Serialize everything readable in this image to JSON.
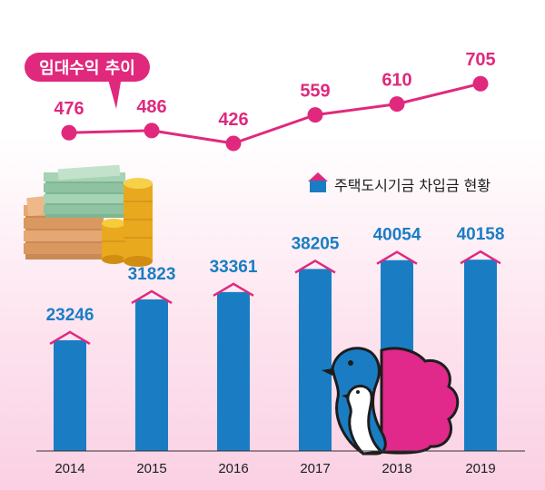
{
  "chart_data": [
    {
      "type": "line",
      "title": "임대수익 추이",
      "categories": [
        "2014",
        "2015",
        "2016",
        "2017",
        "2018",
        "2019"
      ],
      "values": [
        476,
        486,
        426,
        559,
        610,
        705
      ],
      "color": "#e0297d"
    },
    {
      "type": "bar",
      "title": "주택도시기금 차입금 현황",
      "categories": [
        "2014",
        "2015",
        "2016",
        "2017",
        "2018",
        "2019"
      ],
      "values": [
        23246,
        31823,
        33361,
        38205,
        40054,
        40158
      ],
      "color": "#1a7dc4",
      "roof_color": "#e0297d"
    }
  ],
  "legend": {
    "label": "주택도시기금 차입금 현황",
    "icon": "house-icon"
  },
  "callout": {
    "label": "임대수익 추이"
  },
  "decorations": [
    "money-stack-icon",
    "coin-stack-icon",
    "bird-logo-icon"
  ]
}
